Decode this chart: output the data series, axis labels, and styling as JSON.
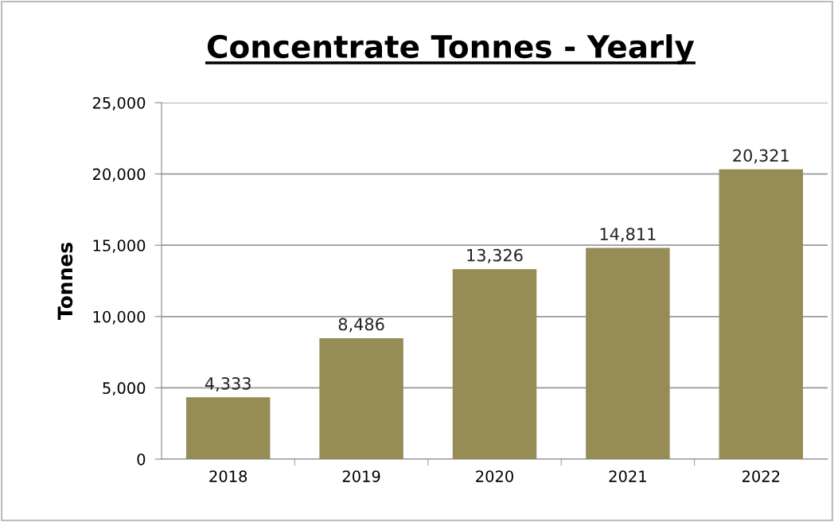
{
  "chart_data": {
    "type": "bar",
    "title": "Concentrate Tonnes - Yearly",
    "ylabel": "Tonnes",
    "categories": [
      "2018",
      "2019",
      "2020",
      "2021",
      "2022"
    ],
    "values": [
      4333,
      8486,
      13326,
      14811,
      20321
    ],
    "value_labels": [
      "4,333",
      "8,486",
      "13,326",
      "14,811",
      "20,321"
    ],
    "color": "#968c55",
    "ylim": [
      0,
      25000
    ],
    "yticks": [
      {
        "value": 0,
        "label": "0"
      },
      {
        "value": 5000,
        "label": "5,000"
      },
      {
        "value": 10000,
        "label": "10,000"
      },
      {
        "value": 15000,
        "label": "15,000"
      },
      {
        "value": 20000,
        "label": "20,000"
      },
      {
        "value": 25000,
        "label": "25,000"
      }
    ],
    "grid": "y",
    "legend": false
  }
}
